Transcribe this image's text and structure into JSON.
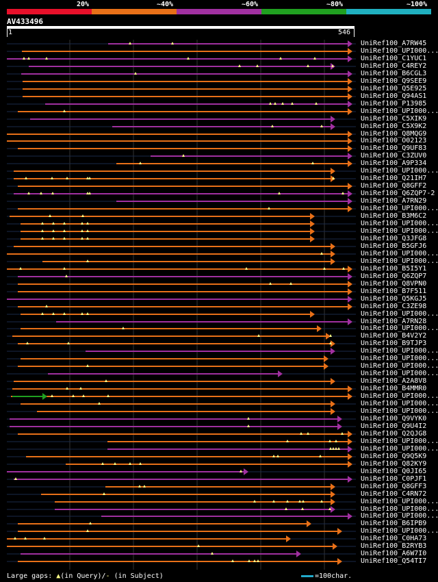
{
  "legend": {
    "labels": [
      "20%",
      "~40%",
      "~60%",
      "~80%",
      "~100%"
    ],
    "colors": [
      "#e8102a",
      "#e87018",
      "#a030a0",
      "#20a020",
      "#20b0c0"
    ]
  },
  "query": {
    "label": "AV433496",
    "start": "1",
    "end": "546"
  },
  "footer": {
    "gaps_prefix": "Large gaps: ",
    "in_query": "(in Query)/",
    "dash": "-",
    "in_subject": " (in Subject)"
  },
  "scale": {
    "label": "=100char."
  },
  "colors": {
    "orange": "#e87018",
    "magenta": "#a030a0",
    "green": "#20a020",
    "gap": "#ffff88",
    "grid": "#333"
  },
  "hits": [
    {
      "name": "UniRef100_A7RW45",
      "color": "magenta"
    },
    {
      "name": "UniRef100_UPI000...",
      "color": "orange"
    },
    {
      "name": "UniRef100_C1YUC1",
      "color": "magenta"
    },
    {
      "name": "UniRef100_C4REY2",
      "color": "magenta"
    },
    {
      "name": "UniRef100_B6CGL3",
      "color": "magenta"
    },
    {
      "name": "UniRef100_Q9SEE9",
      "color": "orange"
    },
    {
      "name": "UniRef100_Q5E925",
      "color": "orange"
    },
    {
      "name": "UniRef100_Q94AS1",
      "color": "orange"
    },
    {
      "name": "UniRef100_P13985",
      "color": "magenta"
    },
    {
      "name": "UniRef100_UPI000...",
      "color": "orange"
    },
    {
      "name": "UniRef100_C5XIK9",
      "color": "magenta"
    },
    {
      "name": "UniRef100_C5X9K2",
      "color": "magenta"
    },
    {
      "name": "UniRef100_Q8MQG9",
      "color": "orange"
    },
    {
      "name": "UniRef100_O02123",
      "color": "orange"
    },
    {
      "name": "UniRef100_Q9UF83",
      "color": "orange"
    },
    {
      "name": "UniRef100_C3ZUV0",
      "color": "magenta"
    },
    {
      "name": "UniRef100_A9P334",
      "color": "orange"
    },
    {
      "name": "UniRef100_UPI000...",
      "color": "orange"
    },
    {
      "name": "UniRef100_Q21IH7",
      "color": "orange"
    },
    {
      "name": "UniRef100_Q8GFF2",
      "color": "orange"
    },
    {
      "name": "UniRef100_Q6ZQP7-2",
      "color": "magenta"
    },
    {
      "name": "UniRef100_A7RN29",
      "color": "magenta"
    },
    {
      "name": "UniRef100_UPI000...",
      "color": "orange"
    },
    {
      "name": "UniRef100_B3M6C2",
      "color": "orange"
    },
    {
      "name": "UniRef100_UPI000...",
      "color": "orange"
    },
    {
      "name": "UniRef100_UPI000...",
      "color": "orange"
    },
    {
      "name": "UniRef100_Q3JFG8",
      "color": "orange"
    },
    {
      "name": "UniRef100_B5GFJ6",
      "color": "orange"
    },
    {
      "name": "UniRef100_UPI000...",
      "color": "orange"
    },
    {
      "name": "UniRef100_UPI000...",
      "color": "orange"
    },
    {
      "name": "UniRef100_B5I5Y1",
      "color": "orange"
    },
    {
      "name": "UniRef100_Q6ZQP7",
      "color": "magenta"
    },
    {
      "name": "UniRef100_Q8VPN0",
      "color": "orange"
    },
    {
      "name": "UniRef100_B7F511",
      "color": "orange"
    },
    {
      "name": "UniRef100_Q5KGJ5",
      "color": "magenta"
    },
    {
      "name": "UniRef100_C3ZE98",
      "color": "orange"
    },
    {
      "name": "UniRef100_UPI000...",
      "color": "orange"
    },
    {
      "name": "UniRef100_A7RN28",
      "color": "magenta"
    },
    {
      "name": "UniRef100_UPI000...",
      "color": "orange"
    },
    {
      "name": "UniRef100_B4V2Y2",
      "color": "orange"
    },
    {
      "name": "UniRef100_B9TJP3",
      "color": "orange"
    },
    {
      "name": "UniRef100_UPI000...",
      "color": "magenta"
    },
    {
      "name": "UniRef100_UPI000...",
      "color": "orange"
    },
    {
      "name": "UniRef100_UPI000...",
      "color": "orange"
    },
    {
      "name": "UniRef100_UPI000...",
      "color": "magenta"
    },
    {
      "name": "UniRef100_A2A8V8",
      "color": "orange"
    },
    {
      "name": "UniRef100_B4MMR0",
      "color": "orange"
    },
    {
      "name": "UniRef100_UPI000...",
      "color": "orange"
    },
    {
      "name": "UniRef100_UPI000...",
      "color": "orange"
    },
    {
      "name": "UniRef100_UPI000...",
      "color": "orange"
    },
    {
      "name": "UniRef100_Q9VYK0",
      "color": "magenta"
    },
    {
      "name": "UniRef100_Q9U4I2",
      "color": "magenta"
    },
    {
      "name": "UniRef100_Q2QJG8",
      "color": "orange"
    },
    {
      "name": "UniRef100_UPI000...",
      "color": "orange"
    },
    {
      "name": "UniRef100_UPI000...",
      "color": "magenta"
    },
    {
      "name": "UniRef100_Q9Q5K9",
      "color": "orange"
    },
    {
      "name": "UniRef100_Q82KY9",
      "color": "orange"
    },
    {
      "name": "UniRef100_Q0JI65",
      "color": "magenta"
    },
    {
      "name": "UniRef100_C0PJF1",
      "color": "magenta"
    },
    {
      "name": "UniRef100_Q8GFF3",
      "color": "orange"
    },
    {
      "name": "UniRef100_C4RN72",
      "color": "orange"
    },
    {
      "name": "UniRef100_UPI000...",
      "color": "orange"
    },
    {
      "name": "UniRef100_UPI000...",
      "color": "magenta"
    },
    {
      "name": "UniRef100_UPI000...",
      "color": "magenta"
    },
    {
      "name": "UniRef100_B6IPB9",
      "color": "orange"
    },
    {
      "name": "UniRef100_UPI000...",
      "color": "orange"
    },
    {
      "name": "UniRef100_C0HA73",
      "color": "orange"
    },
    {
      "name": "UniRef100_B2RYB3",
      "color": "orange"
    },
    {
      "name": "UniRef100_A6W7I0",
      "color": "magenta"
    },
    {
      "name": "UniRef100_Q54TI7",
      "color": "orange"
    }
  ]
}
